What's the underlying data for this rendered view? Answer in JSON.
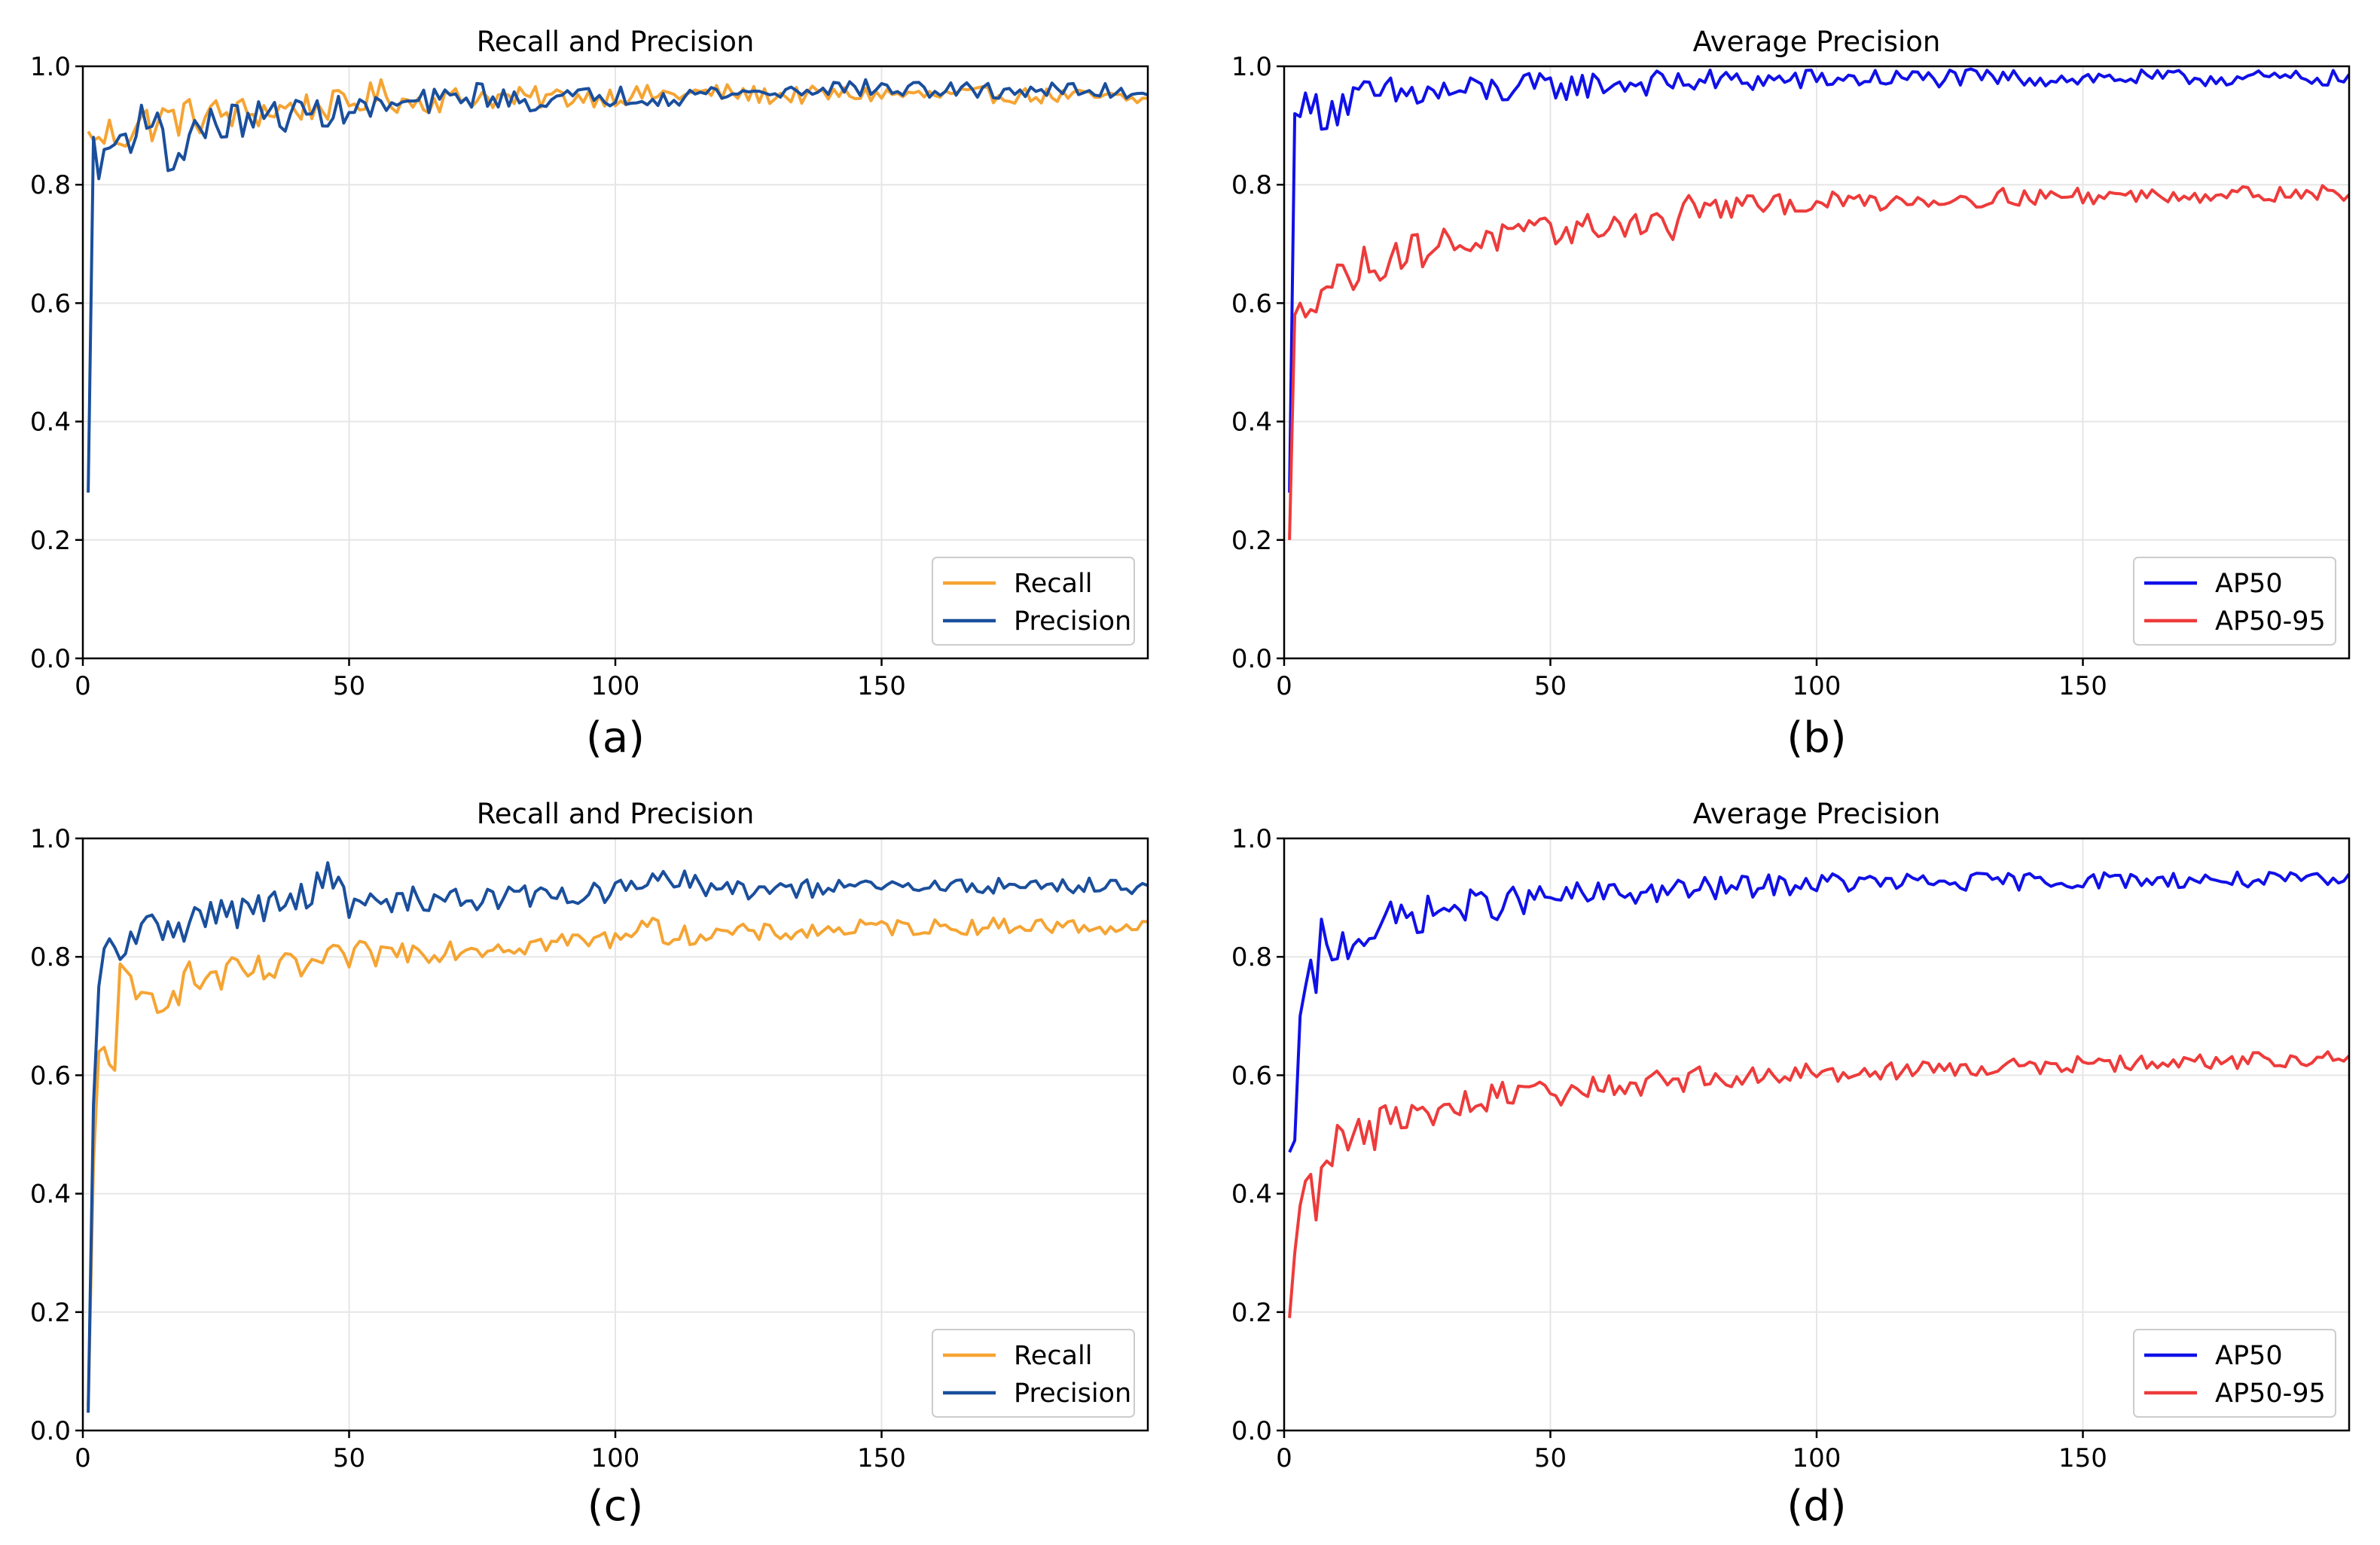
{
  "chart_data": [
    {
      "type": "line",
      "panel_label": "(a)",
      "title": "Recall and Precision",
      "xlabel": "",
      "ylabel": "",
      "xlim": [
        0,
        200
      ],
      "ylim": [
        0.0,
        1.0
      ],
      "xticks": [
        "0",
        "50",
        "100",
        "150"
      ],
      "yticks": [
        "0.0",
        "0.2",
        "0.4",
        "0.6",
        "0.8",
        "1.0"
      ],
      "grid": true,
      "legend_position": "lower-right",
      "series": [
        {
          "name": "Recall",
          "color": "#f5a433",
          "x": [
            1,
            2,
            3,
            5,
            8,
            10,
            15,
            20,
            30,
            40,
            50,
            56,
            60,
            70,
            75,
            80,
            90,
            100,
            110,
            120,
            130,
            140,
            150,
            160,
            170,
            180,
            190,
            200
          ],
          "values": [
            0.89,
            0.875,
            0.88,
            0.885,
            0.89,
            0.9,
            0.91,
            0.915,
            0.92,
            0.93,
            0.935,
            0.955,
            0.94,
            0.945,
            0.95,
            0.945,
            0.948,
            0.95,
            0.952,
            0.955,
            0.95,
            0.952,
            0.953,
            0.95,
            0.952,
            0.95,
            0.948,
            0.942
          ]
        },
        {
          "name": "Precision",
          "color": "#1a4f9c",
          "x": [
            1,
            2,
            3,
            4,
            6,
            8,
            10,
            12,
            15,
            17,
            20,
            25,
            30,
            40,
            50,
            60,
            70,
            75,
            80,
            90,
            100,
            110,
            120,
            130,
            135,
            140,
            150,
            160,
            170,
            180,
            190,
            200
          ],
          "values": [
            0.28,
            0.88,
            0.81,
            0.86,
            0.87,
            0.88,
            0.9,
            0.93,
            0.87,
            0.83,
            0.89,
            0.9,
            0.91,
            0.92,
            0.925,
            0.935,
            0.945,
            0.955,
            0.94,
            0.945,
            0.95,
            0.95,
            0.955,
            0.955,
            0.96,
            0.965,
            0.962,
            0.96,
            0.958,
            0.96,
            0.958,
            0.957
          ]
        }
      ]
    },
    {
      "type": "line",
      "panel_label": "(b)",
      "title": "Average Precision",
      "xlabel": "",
      "ylabel": "",
      "xlim": [
        0,
        200
      ],
      "ylim": [
        0.0,
        1.0
      ],
      "xticks": [
        "0",
        "50",
        "100",
        "150"
      ],
      "yticks": [
        "0.0",
        "0.2",
        "0.4",
        "0.6",
        "0.8",
        "1.0"
      ],
      "grid": true,
      "legend_position": "lower-right",
      "series": [
        {
          "name": "AP50",
          "color": "#1010e8",
          "x": [
            1,
            2,
            3,
            5,
            8,
            10,
            15,
            20,
            30,
            40,
            50,
            60,
            70,
            80,
            90,
            100,
            120,
            140,
            160,
            180,
            200
          ],
          "values": [
            0.28,
            0.92,
            0.915,
            0.925,
            0.93,
            0.935,
            0.945,
            0.95,
            0.955,
            0.96,
            0.965,
            0.97,
            0.972,
            0.975,
            0.976,
            0.978,
            0.98,
            0.98,
            0.98,
            0.98,
            0.98
          ]
        },
        {
          "name": "AP50-95",
          "color": "#ee3b3b",
          "x": [
            1,
            2,
            3,
            5,
            10,
            15,
            20,
            30,
            40,
            50,
            60,
            70,
            73,
            75,
            80,
            90,
            100,
            120,
            140,
            160,
            180,
            200
          ],
          "values": [
            0.2,
            0.58,
            0.6,
            0.62,
            0.64,
            0.66,
            0.68,
            0.7,
            0.71,
            0.72,
            0.73,
            0.74,
            0.72,
            0.765,
            0.76,
            0.765,
            0.77,
            0.775,
            0.78,
            0.782,
            0.785,
            0.786
          ]
        }
      ]
    },
    {
      "type": "line",
      "panel_label": "(c)",
      "title": "Recall and Precision",
      "xlabel": "",
      "ylabel": "",
      "xlim": [
        0,
        200
      ],
      "ylim": [
        0.0,
        1.0
      ],
      "xticks": [
        "0",
        "50",
        "100",
        "150"
      ],
      "yticks": [
        "0.0",
        "0.2",
        "0.4",
        "0.6",
        "0.8",
        "1.0"
      ],
      "grid": true,
      "legend_position": "lower-right",
      "series": [
        {
          "name": "Recall",
          "color": "#f5a433",
          "x": [
            1,
            2,
            3,
            5,
            6,
            7,
            10,
            15,
            20,
            30,
            40,
            50,
            60,
            70,
            80,
            90,
            100,
            105,
            110,
            120,
            130,
            140,
            150,
            160,
            170,
            180,
            190,
            200
          ],
          "values": [
            0.04,
            0.45,
            0.64,
            0.65,
            0.62,
            0.76,
            0.72,
            0.74,
            0.76,
            0.77,
            0.78,
            0.8,
            0.81,
            0.815,
            0.82,
            0.825,
            0.83,
            0.86,
            0.835,
            0.84,
            0.84,
            0.845,
            0.85,
            0.85,
            0.852,
            0.853,
            0.85,
            0.85
          ]
        },
        {
          "name": "Precision",
          "color": "#1a4f9c",
          "x": [
            1,
            2,
            3,
            4,
            5,
            8,
            10,
            15,
            20,
            30,
            40,
            46,
            50,
            60,
            70,
            80,
            90,
            100,
            112,
            120,
            130,
            140,
            150,
            160,
            170,
            180,
            190,
            200
          ],
          "values": [
            0.03,
            0.55,
            0.75,
            0.8,
            0.81,
            0.82,
            0.83,
            0.855,
            0.86,
            0.88,
            0.89,
            0.94,
            0.885,
            0.895,
            0.9,
            0.9,
            0.905,
            0.91,
            0.935,
            0.91,
            0.915,
            0.915,
            0.918,
            0.918,
            0.92,
            0.92,
            0.92,
            0.92
          ]
        }
      ]
    },
    {
      "type": "line",
      "panel_label": "(d)",
      "title": "Average Precision",
      "xlabel": "",
      "ylabel": "",
      "xlim": [
        0,
        200
      ],
      "ylim": [
        0.0,
        1.0
      ],
      "xticks": [
        "0",
        "50",
        "100",
        "150"
      ],
      "yticks": [
        "0.0",
        "0.2",
        "0.4",
        "0.6",
        "0.8",
        "1.0"
      ],
      "grid": true,
      "legend_position": "lower-right",
      "series": [
        {
          "name": "AP50",
          "color": "#1010e8",
          "x": [
            1,
            2,
            3,
            4,
            5,
            6,
            7,
            8,
            10,
            15,
            20,
            25,
            30,
            40,
            50,
            60,
            70,
            80,
            90,
            100,
            110,
            120,
            140,
            160,
            180,
            200
          ],
          "values": [
            0.47,
            0.49,
            0.7,
            0.78,
            0.775,
            0.71,
            0.85,
            0.8,
            0.82,
            0.84,
            0.86,
            0.87,
            0.88,
            0.89,
            0.9,
            0.905,
            0.91,
            0.915,
            0.92,
            0.925,
            0.925,
            0.925,
            0.928,
            0.93,
            0.93,
            0.928
          ]
        },
        {
          "name": "AP50-95",
          "color": "#ee3b3b",
          "x": [
            1,
            2,
            3,
            4,
            5,
            6,
            7,
            10,
            15,
            20,
            30,
            40,
            50,
            60,
            70,
            80,
            90,
            100,
            120,
            140,
            160,
            180,
            200
          ],
          "values": [
            0.19,
            0.3,
            0.38,
            0.44,
            0.44,
            0.39,
            0.48,
            0.48,
            0.5,
            0.52,
            0.54,
            0.56,
            0.57,
            0.58,
            0.59,
            0.595,
            0.6,
            0.605,
            0.61,
            0.615,
            0.62,
            0.625,
            0.63
          ]
        }
      ]
    }
  ]
}
